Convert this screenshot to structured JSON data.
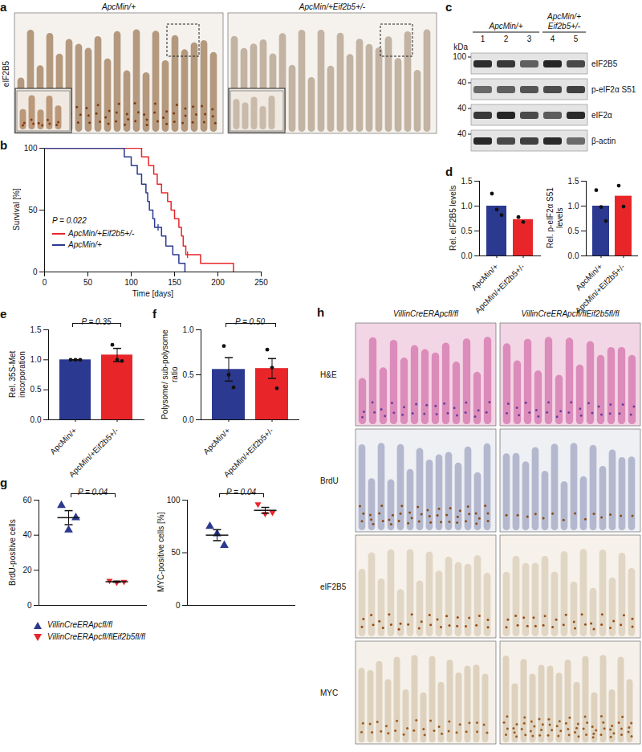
{
  "panel_a": {
    "label": "a",
    "stain": "eIF2B5",
    "images": [
      "ApcMin/+",
      "ApcMin/+Eif2b5+/-"
    ]
  },
  "panel_c": {
    "label": "c",
    "unit": "kDa",
    "groups": [
      {
        "name": "ApcMin/+",
        "lanes": [
          1,
          2,
          3
        ]
      },
      {
        "name": "ApcMin/+ Eif2b5+/-",
        "lanes": [
          4,
          5
        ]
      }
    ],
    "rows": [
      {
        "name": "eIF2B5",
        "marker": 100
      },
      {
        "name": "p-eIF2α S51",
        "marker": 40
      },
      {
        "name": "eIF2α",
        "marker": 40
      },
      {
        "name": "β-actin",
        "marker": 40
      }
    ]
  },
  "panel_h": {
    "label": "h",
    "columns": [
      "VillinCreERApcfl/fl",
      "VillinCreERApcfl/flEif2b5fl/fl"
    ],
    "rows": [
      "H&E",
      "BrdU",
      "eIF2B5",
      "MYC"
    ]
  },
  "chart_data": [
    {
      "panel": "b",
      "type": "line",
      "line_style": "step",
      "xlabel": "Time [days]",
      "ylabel": "Survival [%]",
      "xlim": [
        0,
        250
      ],
      "xticks": [
        0,
        50,
        100,
        150,
        200,
        250
      ],
      "ylim": [
        0,
        100
      ],
      "yticks": [
        0,
        50,
        100
      ],
      "legend": "bottom-left",
      "annotation": "P = 0.022",
      "series": [
        {
          "name": "ApcMin/+Eif2b5+/-",
          "color": "#e8262a",
          "x": [
            0,
            112,
            120,
            126,
            130,
            135,
            142,
            146,
            150,
            155,
            158,
            160,
            163,
            180,
            218
          ],
          "values": [
            100,
            93,
            86,
            79,
            71,
            64,
            57,
            50,
            43,
            36,
            29,
            21,
            14,
            7,
            0
          ],
          "censored": [
            {
              "x": 165,
              "y": 14
            }
          ]
        },
        {
          "name": "ApcMin/+",
          "color": "#2b3990",
          "x": [
            0,
            92,
            100,
            107,
            112,
            117,
            119,
            121,
            125,
            127,
            135,
            140,
            148,
            155,
            162
          ],
          "values": [
            100,
            93,
            86,
            79,
            71,
            64,
            57,
            50,
            43,
            36,
            29,
            21,
            14,
            7,
            0
          ],
          "censored": [
            {
              "x": 131,
              "y": 36
            }
          ]
        }
      ]
    },
    {
      "panel": "d",
      "type": "bar",
      "ylabel": "Rel. eIF2B5 levels",
      "categories": [
        "ApcMin/+",
        "ApcMin/+Eif2b5+/-"
      ],
      "values": [
        1.0,
        0.73
      ],
      "colors": [
        "#2b3990",
        "#e8262a"
      ],
      "points": [
        [
          1.25,
          0.93,
          0.82
        ],
        [
          0.78,
          0.68
        ]
      ],
      "ylim": [
        0,
        1.5
      ],
      "yticks": [
        {
          "value": 0,
          "label": "0.0"
        },
        0.5,
        {
          "value": 1,
          "label": "1.0"
        },
        1.5
      ]
    },
    {
      "type": "bar",
      "ylabel": "Rel. p-eIF2α S51 levels",
      "categories": [
        "ApcMin/+",
        "ApcMin/+Eif2b5+/-"
      ],
      "values": [
        1.0,
        1.2
      ],
      "colors": [
        "#2b3990",
        "#e8262a"
      ],
      "points": [
        [
          1.32,
          0.98,
          0.7
        ],
        [
          1.41,
          0.99
        ]
      ],
      "ylim": [
        0,
        1.5
      ],
      "yticks": [
        {
          "value": 0,
          "label": "0.0"
        },
        0.5,
        {
          "value": 1,
          "label": "1.0"
        },
        1.5
      ]
    },
    {
      "panel": "e",
      "type": "bar",
      "ylabel": "Rel. 35S-Met incorporation",
      "categories": [
        "ApcMin/+",
        "ApcMin/+Eif2b5+/-"
      ],
      "values": [
        1.0,
        1.08
      ],
      "errors": [
        0,
        0.11
      ],
      "colors": [
        "#2b3990",
        "#e8262a"
      ],
      "points": [
        [
          1,
          1,
          1
        ],
        [
          1.25,
          1.0,
          0.98
        ]
      ],
      "ylim": [
        0,
        1.5
      ],
      "yticks": [
        {
          "value": 0,
          "label": "0.0"
        },
        0.5,
        {
          "value": 1,
          "label": "1.0"
        },
        1.5
      ],
      "annotation": "P = 0.35"
    },
    {
      "panel": "f",
      "type": "bar",
      "ylabel": "Polysome/ sub-polysome ratio",
      "categories": [
        "ApcMin/+",
        "ApcMin/+Eif2b5+/-"
      ],
      "values": [
        0.56,
        0.57
      ],
      "errors": [
        0.13,
        0.11
      ],
      "colors": [
        "#2b3990",
        "#e8262a"
      ],
      "points": [
        [
          0.82,
          0.5,
          0.36
        ],
        [
          0.78,
          0.58,
          0.35
        ]
      ],
      "ylim": [
        0,
        1
      ],
      "yticks": [
        {
          "value": 0,
          "label": "0.0"
        },
        0.5,
        {
          "value": 1,
          "label": "1.0"
        }
      ],
      "annotation": "P = 0.50"
    },
    {
      "panel": "g",
      "type": "scatter",
      "ylabel": "BrdU-positive cells",
      "ylim": [
        0,
        60
      ],
      "yticks": [
        0,
        20,
        40,
        60
      ],
      "tick_labels": "y",
      "annotation": "P = 0.04",
      "legend": "bottom",
      "series": [
        {
          "name": "VillinCreERApcfl/fl",
          "color": "#2b3990",
          "marker": "triangle-up",
          "values": [
            57,
            43,
            50
          ],
          "mean": 50,
          "sem": 4
        },
        {
          "name": "VillinCreERApcfl/flEif2b5fl/fl",
          "color": "#e8262a",
          "marker": "triangle-down",
          "values": [
            14,
            13,
            13.5
          ],
          "mean": 13.5,
          "sem": 0.3
        }
      ]
    },
    {
      "type": "scatter",
      "ylabel": "MYC-positive cells [%]",
      "ylim": [
        0,
        100
      ],
      "yticks": [
        0,
        50,
        100
      ],
      "tick_labels": "y",
      "annotation": "P = 0.04",
      "series": [
        {
          "name": "VillinCreERApcfl/fl",
          "color": "#2b3990",
          "marker": "triangle-up",
          "values": [
            75,
            68,
            57
          ],
          "mean": 66.7,
          "sem": 5.2
        },
        {
          "name": "VillinCreERApcfl/flEif2b5fl/fl",
          "color": "#e8262a",
          "marker": "triangle-down",
          "values": [
            96,
            87,
            88
          ],
          "mean": 90.3,
          "sem": 2.8
        }
      ]
    }
  ]
}
